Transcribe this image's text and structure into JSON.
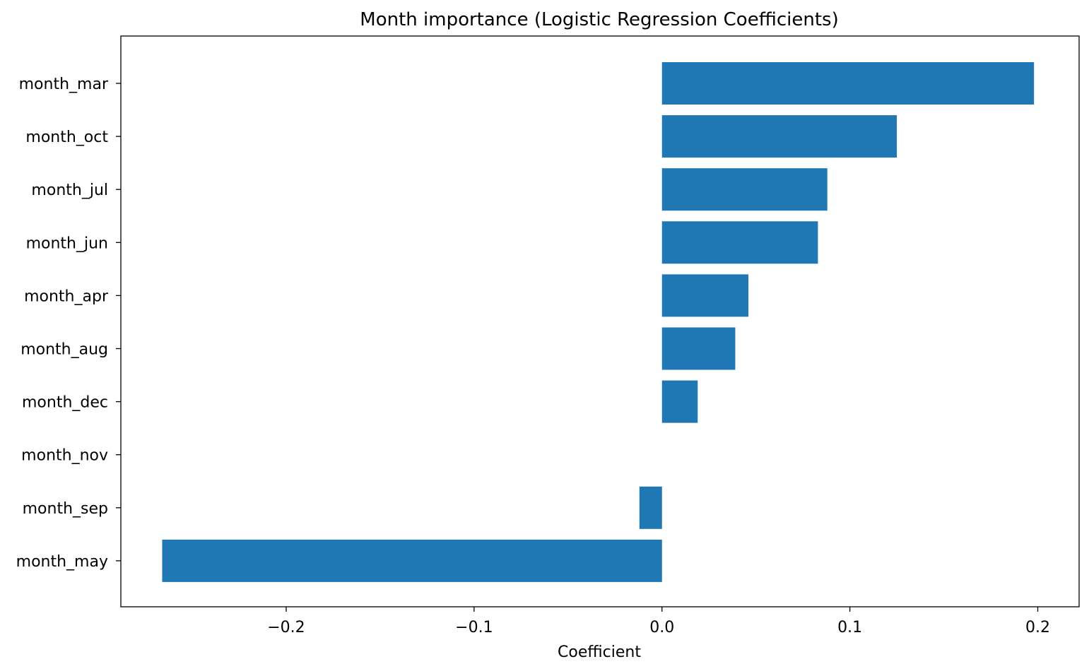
{
  "chart_data": {
    "type": "bar",
    "orientation": "horizontal",
    "title": "Month importance (Logistic Regression Coefficients)",
    "xlabel": "Coefficient",
    "ylabel": "",
    "categories": [
      "month_mar",
      "month_oct",
      "month_jul",
      "month_jun",
      "month_apr",
      "month_aug",
      "month_dec",
      "month_nov",
      "month_sep",
      "month_may"
    ],
    "values": [
      0.198,
      0.125,
      0.088,
      0.083,
      0.046,
      0.039,
      0.019,
      0.0,
      -0.012,
      -0.266
    ],
    "xlim": [
      -0.288,
      0.222
    ],
    "xticks": [
      -0.2,
      -0.1,
      0.0,
      0.1,
      0.2
    ],
    "xtick_labels": [
      "−0.2",
      "−0.1",
      "0.0",
      "0.1",
      "0.2"
    ],
    "bar_color": "#1f77b4",
    "grid": false,
    "legend": "none"
  }
}
